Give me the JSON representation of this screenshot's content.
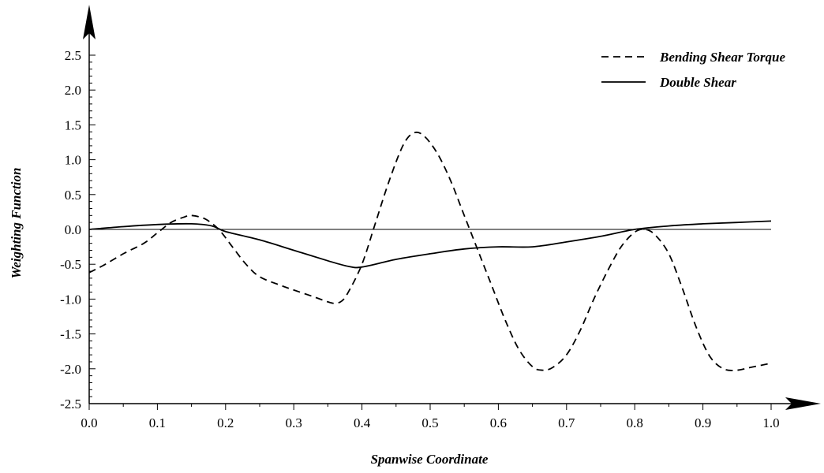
{
  "chart_data": {
    "type": "line",
    "xlabel": "Spanwise Coordinate",
    "ylabel": "Weighting Function",
    "xlim": [
      0.0,
      1.0
    ],
    "ylim": [
      -2.5,
      2.5
    ],
    "xticks": [
      "0.0",
      "0.1",
      "0.2",
      "0.3",
      "0.4",
      "0.5",
      "0.6",
      "0.7",
      "0.8",
      "0.9",
      "1.0"
    ],
    "yticks": [
      "2.5",
      "2.0",
      "1.5",
      "1.0",
      "0.5",
      "0.0",
      "-0.5",
      "-1.0",
      "-1.5",
      "-2.0",
      "-2.5"
    ],
    "grid": false,
    "zero_line": true,
    "legend_position": "top-right",
    "series": [
      {
        "name": "Bending Shear Torque",
        "style": "dashed",
        "color": "#000000",
        "points": [
          [
            0.0,
            -0.62
          ],
          [
            0.02,
            -0.52
          ],
          [
            0.05,
            -0.35
          ],
          [
            0.08,
            -0.2
          ],
          [
            0.1,
            -0.05
          ],
          [
            0.12,
            0.1
          ],
          [
            0.14,
            0.18
          ],
          [
            0.15,
            0.2
          ],
          [
            0.17,
            0.15
          ],
          [
            0.19,
            0.0
          ],
          [
            0.21,
            -0.25
          ],
          [
            0.23,
            -0.5
          ],
          [
            0.25,
            -0.68
          ],
          [
            0.28,
            -0.8
          ],
          [
            0.3,
            -0.87
          ],
          [
            0.33,
            -0.97
          ],
          [
            0.35,
            -1.04
          ],
          [
            0.36,
            -1.06
          ],
          [
            0.37,
            -1.03
          ],
          [
            0.38,
            -0.9
          ],
          [
            0.4,
            -0.5
          ],
          [
            0.42,
            0.1
          ],
          [
            0.44,
            0.7
          ],
          [
            0.46,
            1.2
          ],
          [
            0.475,
            1.38
          ],
          [
            0.49,
            1.35
          ],
          [
            0.51,
            1.1
          ],
          [
            0.53,
            0.7
          ],
          [
            0.55,
            0.2
          ],
          [
            0.57,
            -0.3
          ],
          [
            0.59,
            -0.8
          ],
          [
            0.61,
            -1.3
          ],
          [
            0.63,
            -1.72
          ],
          [
            0.65,
            -1.97
          ],
          [
            0.665,
            -2.02
          ],
          [
            0.68,
            -1.98
          ],
          [
            0.7,
            -1.8
          ],
          [
            0.72,
            -1.45
          ],
          [
            0.74,
            -1.0
          ],
          [
            0.76,
            -0.6
          ],
          [
            0.78,
            -0.25
          ],
          [
            0.8,
            -0.04
          ],
          [
            0.815,
            0.0
          ],
          [
            0.83,
            -0.08
          ],
          [
            0.85,
            -0.35
          ],
          [
            0.87,
            -0.85
          ],
          [
            0.89,
            -1.4
          ],
          [
            0.91,
            -1.82
          ],
          [
            0.93,
            -2.0
          ],
          [
            0.95,
            -2.02
          ],
          [
            0.97,
            -1.98
          ],
          [
            1.0,
            -1.92
          ]
        ]
      },
      {
        "name": "Double Shear",
        "style": "solid",
        "color": "#000000",
        "points": [
          [
            0.0,
            0.0
          ],
          [
            0.05,
            0.04
          ],
          [
            0.1,
            0.07
          ],
          [
            0.15,
            0.08
          ],
          [
            0.18,
            0.05
          ],
          [
            0.2,
            -0.03
          ],
          [
            0.25,
            -0.15
          ],
          [
            0.3,
            -0.3
          ],
          [
            0.35,
            -0.45
          ],
          [
            0.38,
            -0.53
          ],
          [
            0.4,
            -0.54
          ],
          [
            0.45,
            -0.43
          ],
          [
            0.5,
            -0.35
          ],
          [
            0.55,
            -0.28
          ],
          [
            0.6,
            -0.25
          ],
          [
            0.65,
            -0.25
          ],
          [
            0.7,
            -0.18
          ],
          [
            0.75,
            -0.1
          ],
          [
            0.8,
            0.0
          ],
          [
            0.85,
            0.05
          ],
          [
            0.9,
            0.08
          ],
          [
            0.95,
            0.1
          ],
          [
            1.0,
            0.12
          ]
        ]
      }
    ]
  }
}
